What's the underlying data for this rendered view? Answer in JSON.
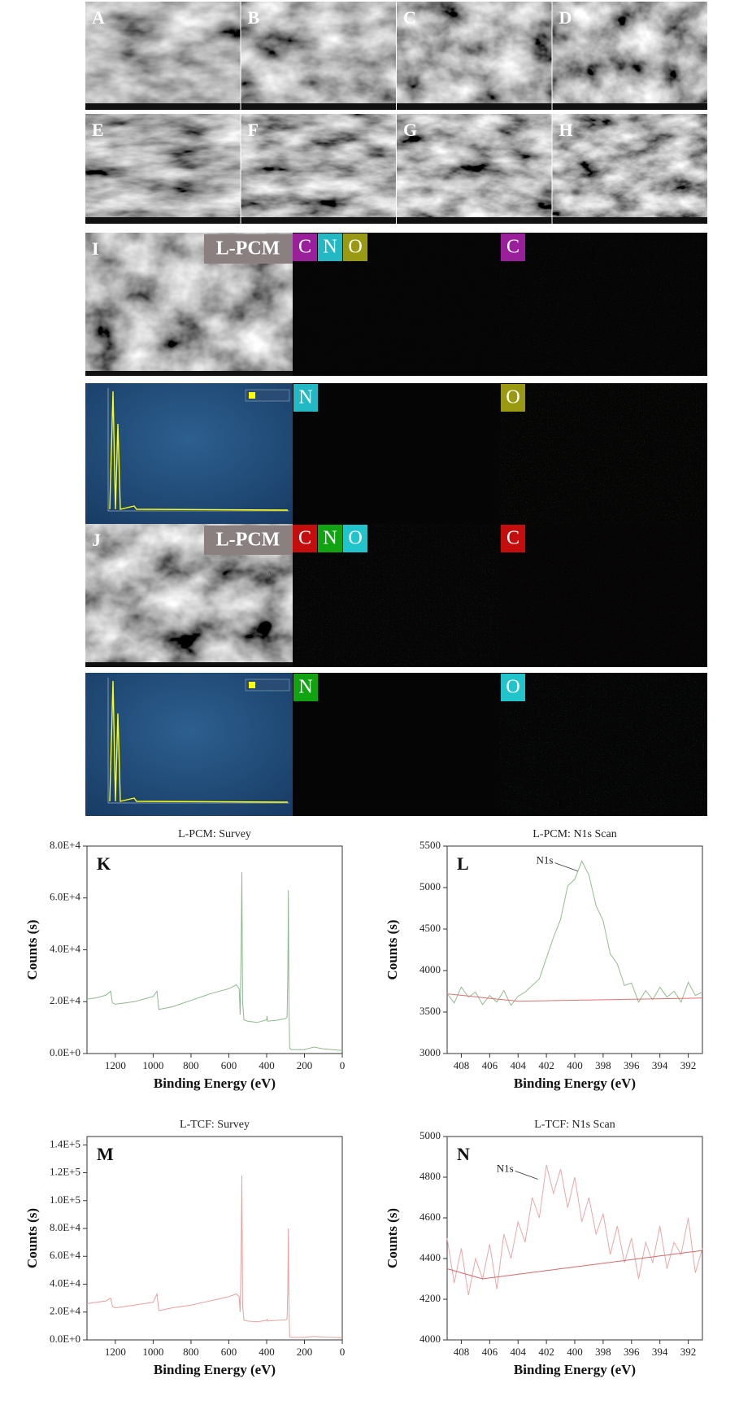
{
  "sem_panels": [
    "A",
    "B",
    "C",
    "D",
    "E",
    "F",
    "G",
    "H"
  ],
  "eds": [
    {
      "panel": "I",
      "sample": "L-PCM",
      "elements": [
        {
          "symbol": "C",
          "color": "#9a1f9a"
        },
        {
          "symbol": "N",
          "color": "#22b8c4"
        },
        {
          "symbol": "O",
          "color": "#9a9a12"
        }
      ]
    },
    {
      "panel": "J",
      "sample": "L-PCM",
      "elements": [
        {
          "symbol": "C",
          "color": "#c40d0d"
        },
        {
          "symbol": "N",
          "color": "#12a312"
        },
        {
          "symbol": "O",
          "color": "#22c4cc"
        }
      ]
    }
  ],
  "chart_data": [
    {
      "type": "line",
      "title": "L-PCM: Survey",
      "panel_label": "K",
      "x_label": "Binding Energy (eV)",
      "y_label": "Counts (s)",
      "x": [
        1350,
        1300,
        1250,
        1225,
        1215,
        1200,
        1100,
        1000,
        980,
        970,
        900,
        800,
        700,
        600,
        560,
        545,
        540,
        535,
        531,
        527,
        520,
        500,
        450,
        400,
        398,
        395,
        350,
        300,
        292,
        288,
        285,
        282,
        278,
        270,
        200,
        150,
        100,
        50,
        0
      ],
      "series": [
        {
          "color": "#8fb88f",
          "values": [
            21000,
            21500,
            22500,
            24000,
            19500,
            19000,
            20000,
            22000,
            24000,
            17000,
            18000,
            20500,
            23000,
            25000,
            26500,
            25000,
            15000,
            40000,
            70000,
            20000,
            13000,
            12500,
            12000,
            13000,
            14500,
            12500,
            12800,
            13500,
            14000,
            30000,
            63000,
            20000,
            2000,
            1500,
            1500,
            2500,
            1800,
            1500,
            1200
          ]
        }
      ],
      "xlim": [
        1350,
        0
      ],
      "ylim": [
        0,
        80000
      ],
      "xticks": [
        1200,
        1000,
        800,
        600,
        400,
        200,
        0
      ],
      "yticks": [
        {
          "value": 0,
          "label": "0.0E+0"
        },
        {
          "value": 20000,
          "label": "2.0E+4"
        },
        {
          "value": 40000,
          "label": "4.0E+4"
        },
        {
          "value": 60000,
          "label": "6.0E+4"
        },
        {
          "value": 80000,
          "label": "8.0E+4"
        }
      ]
    },
    {
      "type": "line",
      "title": "L-PCM: N1s Scan",
      "panel_label": "L",
      "x_label": "Binding Energy (eV)",
      "y_label": "Counts (s)",
      "x": [
        409,
        408.5,
        408,
        407.5,
        407,
        406.5,
        406,
        405.5,
        405,
        404.5,
        404,
        403.5,
        403,
        402.5,
        402,
        401.5,
        401,
        400.5,
        400,
        399.5,
        399,
        398.5,
        398,
        397.5,
        397,
        396.5,
        396,
        395.5,
        395,
        394.5,
        394,
        393.5,
        393,
        392.5,
        392,
        391.5,
        391
      ],
      "series": [
        {
          "color": "#93bd8e",
          "values": [
            3720,
            3610,
            3800,
            3680,
            3740,
            3590,
            3700,
            3620,
            3760,
            3580,
            3690,
            3740,
            3820,
            3900,
            4150,
            4400,
            4620,
            5020,
            5100,
            5320,
            5150,
            4780,
            4600,
            4200,
            4080,
            3820,
            3850,
            3620,
            3760,
            3650,
            3800,
            3680,
            3750,
            3620,
            3860,
            3700,
            3740
          ]
        },
        {
          "color": "#e07070",
          "values": [
            3720,
            3711,
            3702,
            3693,
            3684,
            3675,
            3666,
            3657,
            3648,
            3639,
            3630,
            3632,
            3633,
            3635,
            3636,
            3638,
            3639,
            3641,
            3642,
            3644,
            3645,
            3647,
            3648,
            3650,
            3651,
            3653,
            3654,
            3656,
            3657,
            3659,
            3660,
            3662,
            3663,
            3665,
            3666,
            3668,
            3670
          ]
        }
      ],
      "annotations": [
        {
          "text": "N1s",
          "x": 399.8,
          "y": 5200
        }
      ],
      "xlim": [
        409,
        391
      ],
      "ylim": [
        3000,
        5500
      ],
      "xticks": [
        408,
        406,
        404,
        402,
        400,
        398,
        396,
        394,
        392
      ],
      "yticks": [
        3000,
        3500,
        4000,
        4500,
        5000,
        5500
      ]
    },
    {
      "type": "line",
      "title": "L-TCF: Survey",
      "panel_label": "M",
      "x_label": "Binding Energy (eV)",
      "y_label": "Counts (s)",
      "x": [
        1350,
        1300,
        1250,
        1225,
        1215,
        1200,
        1100,
        1000,
        980,
        970,
        900,
        800,
        700,
        600,
        560,
        545,
        540,
        535,
        531,
        527,
        520,
        500,
        450,
        400,
        398,
        395,
        350,
        300,
        292,
        288,
        285,
        282,
        278,
        270,
        200,
        150,
        100,
        50,
        0
      ],
      "series": [
        {
          "color": "#e8a0a0",
          "values": [
            26000,
            27000,
            28000,
            30000,
            24000,
            23000,
            25000,
            27000,
            33000,
            21000,
            23000,
            25000,
            28000,
            31000,
            33000,
            31000,
            20000,
            60000,
            118000,
            25000,
            14000,
            13500,
            13000,
            14000,
            15000,
            13500,
            14000,
            14500,
            15000,
            35000,
            80000,
            25000,
            2000,
            1800,
            1800,
            2500,
            2000,
            1800,
            1500
          ]
        }
      ],
      "xlim": [
        1350,
        0
      ],
      "ylim": [
        0,
        146000
      ],
      "xticks": [
        1200,
        1000,
        800,
        600,
        400,
        200,
        0
      ],
      "yticks": [
        {
          "value": 0,
          "label": "0.0E+0"
        },
        {
          "value": 20000,
          "label": "2.0E+4"
        },
        {
          "value": 40000,
          "label": "4.0E+4"
        },
        {
          "value": 60000,
          "label": "6.0E+4"
        },
        {
          "value": 80000,
          "label": "8.0E+4"
        },
        {
          "value": 100000,
          "label": "1.0E+5"
        },
        {
          "value": 120000,
          "label": "1.2E+5"
        },
        {
          "value": 140000,
          "label": "1.4E+5"
        }
      ]
    },
    {
      "type": "line",
      "title": "L-TCF: N1s Scan",
      "panel_label": "N",
      "x_label": "Binding Energy (eV)",
      "y_label": "Counts (s)",
      "x": [
        409,
        408.5,
        408,
        407.5,
        407,
        406.5,
        406,
        405.5,
        405,
        404.5,
        404,
        403.5,
        403,
        402.5,
        402,
        401.5,
        401,
        400.5,
        400,
        399.5,
        399,
        398.5,
        398,
        397.5,
        397,
        396.5,
        396,
        395.5,
        395,
        394.5,
        394,
        393.5,
        393,
        392.5,
        392,
        391.5,
        391
      ],
      "series": [
        {
          "color": "#e8a8a8",
          "values": [
            4500,
            4280,
            4450,
            4220,
            4400,
            4300,
            4470,
            4250,
            4520,
            4400,
            4580,
            4480,
            4700,
            4600,
            4860,
            4720,
            4840,
            4650,
            4800,
            4580,
            4700,
            4520,
            4620,
            4420,
            4560,
            4380,
            4500,
            4300,
            4480,
            4380,
            4560,
            4350,
            4480,
            4420,
            4600,
            4330,
            4450
          ]
        },
        {
          "color": "#d46a6a",
          "values": [
            4350,
            4340,
            4330,
            4320,
            4310,
            4300,
            4305,
            4309,
            4314,
            4318,
            4323,
            4327,
            4332,
            4336,
            4341,
            4345,
            4350,
            4354,
            4359,
            4363,
            4368,
            4372,
            4377,
            4381,
            4386,
            4390,
            4395,
            4399,
            4404,
            4408,
            4413,
            4417,
            4422,
            4426,
            4431,
            4435,
            4440
          ]
        }
      ],
      "annotations": [
        {
          "text": "N1s",
          "x": 402.6,
          "y": 4790
        }
      ],
      "xlim": [
        409,
        391
      ],
      "ylim": [
        4000,
        5000
      ],
      "xticks": [
        408,
        406,
        404,
        402,
        400,
        398,
        396,
        394,
        392
      ],
      "yticks": [
        4000,
        4200,
        4400,
        4600,
        4800,
        5000
      ]
    }
  ]
}
